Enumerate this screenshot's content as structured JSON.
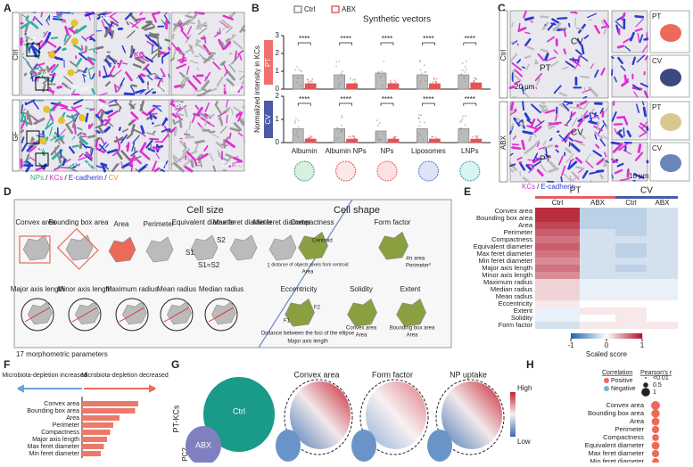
{
  "panel_labels": [
    "A",
    "B",
    "C",
    "D",
    "E",
    "F",
    "G",
    "H"
  ],
  "panel_a": {
    "rows": [
      "Ctrl",
      "GF"
    ],
    "regions": [
      "PT",
      "CV"
    ],
    "scale_bars": [
      "100 μm",
      "20 μm"
    ],
    "kc_label": "KC",
    "legend": [
      "NPs",
      "KCs",
      "E-cadherin",
      "CV"
    ],
    "separator": "/"
  },
  "chart_data": {
    "type": "bar",
    "title": "Synthetic vectors",
    "y_label": "Normalized intensity in KCs",
    "categories": [
      "Albumin",
      "Albumin NPs",
      "NPs",
      "Liposomes",
      "LNPs"
    ],
    "significance": "****",
    "panels": [
      {
        "name": "PT",
        "ylim": [
          0,
          3
        ],
        "yticks": [
          0,
          1,
          2,
          3
        ],
        "series": [
          {
            "name": "Ctrl",
            "color": "#8c8c8c",
            "values": [
              0.8,
              0.8,
              0.9,
              0.8,
              0.8
            ]
          },
          {
            "name": "ABX",
            "color": "#e05555",
            "values": [
              0.3,
              0.3,
              0.3,
              0.3,
              0.35
            ]
          }
        ]
      },
      {
        "name": "CV",
        "ylim": [
          0,
          2
        ],
        "yticks": [
          0,
          1,
          2
        ],
        "series": [
          {
            "name": "Ctrl",
            "color": "#8c8c8c",
            "values": [
              0.6,
              0.6,
              0.5,
              0.6,
              0.6
            ]
          },
          {
            "name": "ABX",
            "color": "#e05555",
            "values": [
              0.15,
              0.15,
              0.15,
              0.15,
              0.15
            ]
          }
        ]
      }
    ]
  },
  "panel_c": {
    "rows": [
      "Ctrl",
      "ABX"
    ],
    "regions": [
      "PT",
      "CV"
    ],
    "scale_bars": [
      "20 μm",
      "10 μm"
    ],
    "legend": [
      "KCs",
      "E-cadherin"
    ],
    "separator": "/"
  },
  "panel_d": {
    "titles": [
      "Cell size",
      "Cell shape"
    ],
    "size_params": [
      "Convex area",
      "Bounding box area",
      "Area",
      "Perimeter",
      "Equivalent diameter",
      "Max feret diameter",
      "Min feret diameter",
      "Major axis length",
      "Minor axis length",
      "Maximum radius",
      "Mean radius",
      "Median radius"
    ],
    "shape_params": [
      "Compactness",
      "Form factor",
      "Eccentricity",
      "Solidity",
      "Extent"
    ],
    "notes": [
      "S1",
      "S2",
      "S1=S2",
      "Centroid",
      "∑ distance of objects pixels from centroid",
      "Area",
      "4π area",
      "Perimeter²",
      "F1",
      "F2",
      "Distance between the foci of the ellipse",
      "Major axis length",
      "Convex area",
      "Area",
      "Bounding box area",
      "Area"
    ],
    "footer": "17 morphometric parameters"
  },
  "panel_e": {
    "groups": [
      "PT",
      "CV"
    ],
    "subgroups": [
      "Ctrl",
      "ABX",
      "Ctrl",
      "ABX"
    ],
    "rows": [
      "Convex area",
      "Bounding box area",
      "Area",
      "Perimeter",
      "Compactness",
      "Equivalent diameter",
      "Max feret diameter",
      "Min feret diameter",
      "Major axis length",
      "Minor axis length",
      "Maximum radius",
      "Median radius",
      "Mean radius",
      "Eccentricity",
      "Extent",
      "Solidity",
      "Form factor"
    ],
    "scores": [
      [
        0.9,
        -0.3,
        -0.3,
        -0.2
      ],
      [
        0.9,
        -0.3,
        -0.3,
        -0.2
      ],
      [
        0.8,
        -0.3,
        -0.3,
        -0.2
      ],
      [
        0.7,
        -0.2,
        -0.3,
        -0.2
      ],
      [
        0.6,
        -0.2,
        -0.2,
        -0.2
      ],
      [
        0.7,
        -0.2,
        -0.3,
        -0.2
      ],
      [
        0.6,
        -0.2,
        -0.3,
        -0.2
      ],
      [
        0.5,
        -0.2,
        -0.2,
        -0.2
      ],
      [
        0.6,
        -0.2,
        -0.3,
        -0.2
      ],
      [
        0.5,
        -0.2,
        -0.2,
        -0.2
      ],
      [
        0.2,
        -0.1,
        -0.1,
        -0.1
      ],
      [
        0.2,
        -0.1,
        -0.1,
        -0.1
      ],
      [
        0.2,
        -0.1,
        -0.1,
        -0.1
      ],
      [
        0.1,
        0,
        0,
        0
      ],
      [
        -0.1,
        0.1,
        0.1,
        0
      ],
      [
        -0.1,
        0,
        0.1,
        0
      ],
      [
        -0.2,
        0.1,
        0.1,
        0.1
      ]
    ],
    "colorbar_ticks": [
      -1,
      0,
      1
    ],
    "colorbar_label": "Scaled score"
  },
  "panel_f": {
    "headers": [
      "Microbiota-depletion increased",
      "Microbiota-depletion decreased"
    ],
    "rows": [
      "Convex area",
      "Bounding box area",
      "Area",
      "Perimeter",
      "Compactness",
      "Major axis length",
      "Max feret diameter",
      "Min feret diameter"
    ],
    "values": [
      0.9,
      0.85,
      0.6,
      0.5,
      0.45,
      0.4,
      0.35,
      0.3
    ],
    "xlim": [
      0,
      1
    ]
  },
  "panel_g": {
    "titles": [
      "Convex area",
      "Form factor",
      "NP uptake"
    ],
    "clusters": [
      "Ctrl",
      "ABX"
    ],
    "row_label": "PT-KCs",
    "axis_label": "PC2",
    "scale": [
      "High",
      "Low"
    ]
  },
  "panel_h": {
    "title": "Correlation",
    "size_title": "Pearson's r",
    "signs": [
      "Positive",
      "Negative"
    ],
    "sizes": [
      {
        "value": 0.01,
        "label": "<0.01"
      },
      0.5,
      1
    ],
    "rows": [
      "Convex area",
      "Bounding box area",
      "Area",
      "Perimeter",
      "Compactness",
      "Equivalent diameter",
      "Max feret diameter",
      "Min feret diameter"
    ],
    "values": [
      0.9,
      0.85,
      0.8,
      0.75,
      0.7,
      0.8,
      0.75,
      0.7
    ]
  }
}
